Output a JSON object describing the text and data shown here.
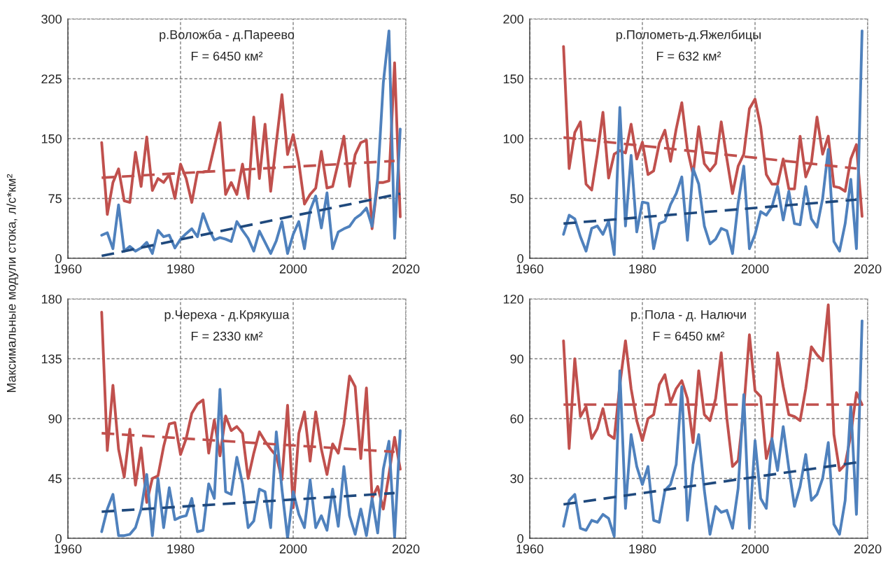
{
  "chart_data": [
    {
      "type": "line",
      "title": "р.Воложба - д.Пареево",
      "subtitle": "F = 6450 км²",
      "ylabel": "Максимальные модули стока, л/с*км²",
      "x": [
        1966,
        1967,
        1968,
        1969,
        1970,
        1971,
        1972,
        1973,
        1974,
        1975,
        1976,
        1977,
        1978,
        1979,
        1980,
        1981,
        1982,
        1983,
        1984,
        1985,
        1986,
        1987,
        1988,
        1989,
        1990,
        1991,
        1992,
        1993,
        1994,
        1995,
        1996,
        1997,
        1998,
        1999,
        2000,
        2001,
        2002,
        2003,
        2004,
        2005,
        2006,
        2007,
        2008,
        2009,
        2010,
        2011,
        2012,
        2013,
        2014,
        2015,
        2016,
        2017,
        2018,
        2019
      ],
      "series": [
        {
          "color": "#c0504d",
          "values": [
            145,
            55,
            95,
            112,
            72,
            70,
            133,
            90,
            152,
            85,
            100,
            95,
            105,
            75,
            118,
            100,
            70,
            108,
            108,
            110,
            140,
            170,
            80,
            95,
            80,
            118,
            75,
            177,
            100,
            168,
            84,
            145,
            205,
            130,
            155,
            120,
            68,
            80,
            88,
            134,
            88,
            90,
            120,
            153,
            90,
            130,
            145,
            148,
            37,
            95,
            95,
            97,
            245,
            52
          ]
        },
        {
          "color": "#4f81bd",
          "values": [
            29,
            32,
            12,
            67,
            9,
            15,
            9,
            13,
            20,
            6,
            35,
            27,
            29,
            13,
            24,
            31,
            37,
            27,
            56,
            37,
            23,
            26,
            24,
            21,
            46,
            35,
            25,
            9,
            34,
            20,
            6,
            22,
            46,
            6,
            30,
            46,
            12,
            60,
            78,
            38,
            82,
            12,
            33,
            37,
            40,
            50,
            55,
            63,
            40,
            100,
            220,
            285,
            25,
            162
          ]
        },
        {
          "type": "line",
          "line_style": "dashed",
          "color": "#c0504d",
          "x": [
            1966,
            2018
          ],
          "values": [
            101,
            122
          ]
        },
        {
          "type": "line",
          "line_style": "dashed",
          "color": "#1f497d",
          "x": [
            1966,
            2019
          ],
          "values": [
            3,
            81
          ]
        }
      ],
      "xlim": [
        1960,
        2020
      ],
      "xticks": [
        1960,
        1980,
        2000,
        2020
      ],
      "ylim": [
        0,
        300
      ],
      "yticks": [
        0,
        75,
        150,
        225,
        300
      ],
      "grid": true,
      "line_style": "solid",
      "marker": "none"
    },
    {
      "type": "line",
      "title": "р.Полометь-д.Яжелбицы",
      "subtitle": "F = 632 км²",
      "x": [
        1966,
        1967,
        1968,
        1969,
        1970,
        1971,
        1972,
        1973,
        1974,
        1975,
        1976,
        1977,
        1978,
        1979,
        1980,
        1981,
        1982,
        1983,
        1984,
        1985,
        1986,
        1987,
        1988,
        1989,
        1990,
        1991,
        1992,
        1993,
        1994,
        1995,
        1996,
        1997,
        1998,
        1999,
        2000,
        2001,
        2002,
        2003,
        2004,
        2005,
        2006,
        2007,
        2008,
        2009,
        2010,
        2011,
        2012,
        2013,
        2014,
        2015,
        2016,
        2017,
        2018,
        2019
      ],
      "series": [
        {
          "color": "#c0504d",
          "values": [
            177,
            75,
            105,
            114,
            62,
            57,
            87,
            122,
            67,
            87,
            90,
            88,
            112,
            83,
            97,
            70,
            73,
            96,
            107,
            81,
            108,
            130,
            91,
            70,
            110,
            79,
            73,
            79,
            114,
            83,
            54,
            77,
            87,
            125,
            133,
            110,
            70,
            62,
            62,
            83,
            58,
            58,
            102,
            68,
            80,
            118,
            87,
            102,
            60,
            59,
            56,
            83,
            95,
            35
          ]
        },
        {
          "color": "#4f81bd",
          "values": [
            20,
            36,
            33,
            18,
            6,
            25,
            27,
            20,
            31,
            3,
            126,
            27,
            86,
            22,
            47,
            46,
            8,
            29,
            31,
            45,
            54,
            68,
            15,
            75,
            62,
            27,
            12,
            16,
            25,
            23,
            4,
            46,
            77,
            8,
            20,
            39,
            36,
            43,
            60,
            32,
            56,
            29,
            28,
            60,
            33,
            26,
            50,
            91,
            14,
            6,
            29,
            66,
            8,
            190
          ]
        },
        {
          "type": "line",
          "line_style": "dashed",
          "color": "#c0504d",
          "x": [
            1966,
            2018
          ],
          "values": [
            101,
            75
          ]
        },
        {
          "type": "line",
          "line_style": "dashed",
          "color": "#1f497d",
          "x": [
            1966,
            2018
          ],
          "values": [
            29,
            49
          ]
        }
      ],
      "xlim": [
        1960,
        2020
      ],
      "xticks": [
        1960,
        1980,
        2000,
        2020
      ],
      "ylim": [
        0,
        200
      ],
      "yticks": [
        0,
        50,
        100,
        150,
        200
      ],
      "grid": true,
      "line_style": "solid",
      "marker": "none"
    },
    {
      "type": "line",
      "title": "р.Череха - д.Крякуша",
      "subtitle": "F = 2330 км²",
      "x": [
        1966,
        1967,
        1968,
        1969,
        1970,
        1971,
        1972,
        1973,
        1974,
        1975,
        1976,
        1977,
        1978,
        1979,
        1980,
        1981,
        1982,
        1983,
        1984,
        1985,
        1986,
        1987,
        1988,
        1989,
        1990,
        1991,
        1992,
        1993,
        1994,
        1995,
        1996,
        1997,
        1998,
        1999,
        2000,
        2001,
        2002,
        2003,
        2004,
        2005,
        2006,
        2007,
        2008,
        2009,
        2010,
        2011,
        2012,
        2013,
        2014,
        2015,
        2016,
        2017,
        2018,
        2019
      ],
      "series": [
        {
          "color": "#c0504d",
          "values": [
            170,
            66,
            115,
            67,
            46,
            82,
            40,
            68,
            27,
            45,
            47,
            69,
            86,
            87,
            63,
            75,
            94,
            101,
            104,
            64,
            89,
            62,
            92,
            81,
            84,
            79,
            45,
            64,
            80,
            73,
            67,
            62,
            44,
            100,
            23,
            79,
            95,
            58,
            95,
            67,
            48,
            71,
            64,
            86,
            122,
            114,
            60,
            113,
            30,
            39,
            22,
            48,
            76,
            52
          ]
        },
        {
          "color": "#4f81bd",
          "values": [
            5,
            22,
            33,
            2,
            2,
            3,
            8,
            22,
            48,
            2,
            45,
            8,
            38,
            14,
            16,
            17,
            30,
            5,
            6,
            41,
            30,
            112,
            35,
            33,
            61,
            41,
            8,
            13,
            37,
            35,
            8,
            80,
            37,
            0,
            35,
            18,
            8,
            44,
            8,
            17,
            6,
            37,
            9,
            54,
            17,
            3,
            22,
            2,
            30,
            4,
            52,
            73,
            1,
            81
          ]
        },
        {
          "type": "line",
          "line_style": "dashed",
          "color": "#c0504d",
          "x": [
            1966,
            2018
          ],
          "values": [
            79,
            65
          ]
        },
        {
          "type": "line",
          "line_style": "dashed",
          "color": "#1f497d",
          "x": [
            1966,
            2018
          ],
          "values": [
            20,
            34
          ]
        }
      ],
      "xlim": [
        1960,
        2020
      ],
      "xticks": [
        1960,
        1980,
        2000,
        2020
      ],
      "ylim": [
        0,
        180
      ],
      "yticks": [
        0,
        45,
        90,
        135,
        180
      ],
      "grid": true,
      "line_style": "solid",
      "marker": "none"
    },
    {
      "type": "line",
      "title": "р. Пола - д. Налючи",
      "subtitle": "F = 6450 км²",
      "x": [
        1966,
        1967,
        1968,
        1969,
        1970,
        1971,
        1972,
        1973,
        1974,
        1975,
        1976,
        1977,
        1978,
        1979,
        1980,
        1981,
        1982,
        1983,
        1984,
        1985,
        1986,
        1987,
        1988,
        1989,
        1990,
        1991,
        1992,
        1993,
        1994,
        1995,
        1996,
        1997,
        1998,
        1999,
        2000,
        2001,
        2002,
        2003,
        2004,
        2005,
        2006,
        2007,
        2008,
        2009,
        2010,
        2011,
        2012,
        2013,
        2014,
        2015,
        2016,
        2017,
        2018,
        2019
      ],
      "series": [
        {
          "color": "#c0504d",
          "values": [
            99,
            45,
            90,
            61,
            66,
            50,
            55,
            65,
            52,
            50,
            77,
            99,
            75,
            59,
            49,
            60,
            62,
            77,
            82,
            68,
            75,
            79,
            70,
            48,
            84,
            62,
            59,
            70,
            93,
            60,
            36,
            39,
            65,
            102,
            74,
            71,
            40,
            50,
            93,
            76,
            62,
            61,
            59,
            75,
            96,
            92,
            89,
            117,
            52,
            34,
            37,
            52,
            73,
            67
          ]
        },
        {
          "color": "#4f81bd",
          "values": [
            6,
            19,
            22,
            5,
            4,
            9,
            8,
            12,
            10,
            1,
            84,
            15,
            52,
            36,
            27,
            36,
            9,
            8,
            24,
            27,
            37,
            76,
            9,
            37,
            52,
            24,
            2,
            16,
            13,
            14,
            5,
            25,
            72,
            5,
            49,
            20,
            15,
            50,
            34,
            56,
            35,
            16,
            26,
            42,
            19,
            22,
            30,
            48,
            7,
            2,
            19,
            67,
            12,
            109
          ]
        },
        {
          "type": "line",
          "line_style": "dashed",
          "color": "#c0504d",
          "x": [
            1966,
            2019
          ],
          "values": [
            67,
            67
          ]
        },
        {
          "type": "line",
          "line_style": "dashed",
          "color": "#1f497d",
          "x": [
            1966,
            2018
          ],
          "values": [
            17,
            38
          ]
        }
      ],
      "xlim": [
        1960,
        2020
      ],
      "xticks": [
        1960,
        1980,
        2000,
        2020
      ],
      "ylim": [
        0,
        120
      ],
      "yticks": [
        0,
        30,
        60,
        90,
        120
      ],
      "grid": true,
      "line_style": "solid",
      "marker": "none"
    }
  ]
}
